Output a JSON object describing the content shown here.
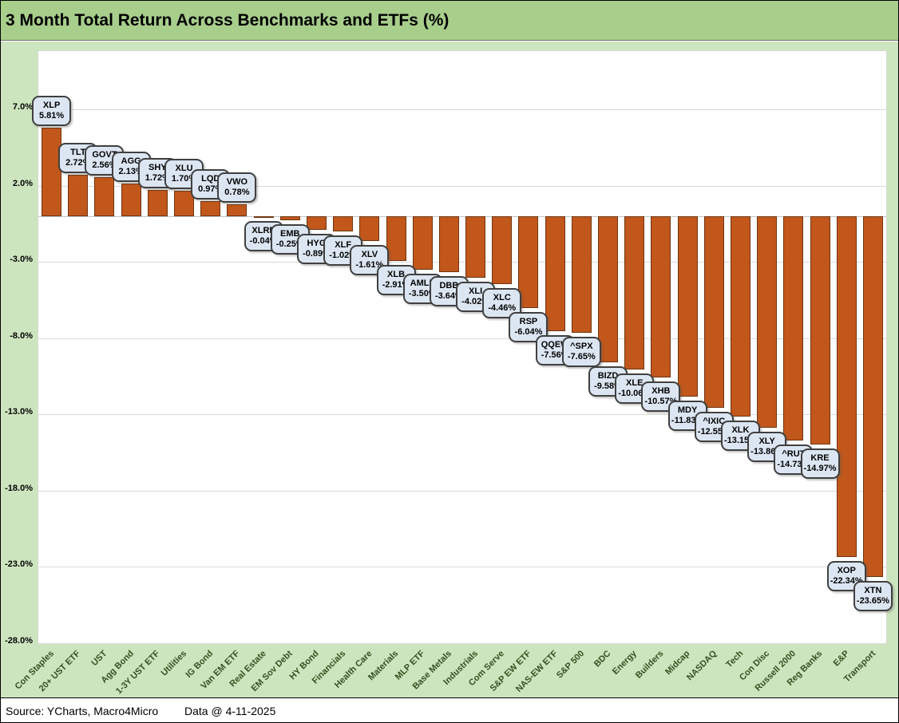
{
  "title": "3 Month Total Return Across Benchmarks and ETFs (%)",
  "footer": {
    "source": "Source: YCharts, Macro4Micro",
    "data_date": "Data @ 4-11-2025"
  },
  "colors": {
    "title_band": "#A8CE8C",
    "chart_background": "#CDE5BF",
    "plot_background": "#FFFFFF",
    "gridline": "#D9D9D9",
    "bar_fill": "#C2571B",
    "bar_border": "#6E3510",
    "label_box_fill": "#DCE6F2",
    "label_box_border": "#404040",
    "category_label_color": "#33511E"
  },
  "chart_data": {
    "type": "bar",
    "title": "3 Month Total Return Across Benchmarks and ETFs (%)",
    "xlabel": "",
    "ylabel": "",
    "grid": true,
    "legend": "none",
    "ylim": [
      -28.4,
      10.8
    ],
    "yticks": [
      7.0,
      2.0,
      -3.0,
      -8.0,
      -13.0,
      -18.0,
      -23.0,
      -28.0
    ],
    "ytick_labels": [
      "7.0%",
      "2.0%",
      "-3.0%",
      "-8.0%",
      "-13.0%",
      "-18.0%",
      "-23.0%",
      "-28.0%"
    ],
    "categories": [
      "Con Staples",
      "20+ UST ETF",
      "UST",
      "Agg Bond",
      "1-3Y UST ETF",
      "Utilities",
      "IG Bond",
      "Van EM ETF",
      "Real Estate",
      "EM Sov Debt",
      "HY Bond",
      "Financials",
      "Health Care",
      "Materials",
      "MLP ETF",
      "Base Metals",
      "Industrials",
      "Com Serve",
      "S&P EW ETF",
      "NAS-EW ETF",
      "S&P 500",
      "BDC",
      "Energy",
      "Builders",
      "Midcap",
      "NASDAQ",
      "Tech",
      "Con Disc",
      "Russell 2000",
      "Reg Banks",
      "E&P",
      "Transport"
    ],
    "points": [
      {
        "category": "Con Staples",
        "ticker": "XLP",
        "value": 5.81,
        "label": "5.81%"
      },
      {
        "category": "20+ UST ETF",
        "ticker": "TLT",
        "value": 2.72,
        "label": "2.72%"
      },
      {
        "category": "UST",
        "ticker": "GOVT",
        "value": 2.56,
        "label": "2.56%"
      },
      {
        "category": "Agg Bond",
        "ticker": "AGG",
        "value": 2.13,
        "label": "2.13%"
      },
      {
        "category": "1-3Y UST ETF",
        "ticker": "SHY",
        "value": 1.72,
        "label": "1.72%"
      },
      {
        "category": "Utilities",
        "ticker": "XLU",
        "value": 1.7,
        "label": "1.70%"
      },
      {
        "category": "IG Bond",
        "ticker": "LQD",
        "value": 0.97,
        "label": "0.97%"
      },
      {
        "category": "Van EM ETF",
        "ticker": "VWO",
        "value": 0.78,
        "label": "0.78%"
      },
      {
        "category": "Real Estate",
        "ticker": "XLRE",
        "value": -0.04,
        "label": "-0.04%"
      },
      {
        "category": "EM Sov Debt",
        "ticker": "EMB",
        "value": -0.25,
        "label": "-0.25%"
      },
      {
        "category": "HY Bond",
        "ticker": "HYG",
        "value": -0.89,
        "label": "-0.89%"
      },
      {
        "category": "Financials",
        "ticker": "XLF",
        "value": -1.02,
        "label": "-1.02%"
      },
      {
        "category": "Health Care",
        "ticker": "XLV",
        "value": -1.61,
        "label": "-1.61%"
      },
      {
        "category": "Materials",
        "ticker": "XLB",
        "value": -2.91,
        "label": "-2.91%"
      },
      {
        "category": "MLP ETF",
        "ticker": "AMLP",
        "value": -3.5,
        "label": "-3.50%"
      },
      {
        "category": "Base Metals",
        "ticker": "DBB",
        "value": -3.64,
        "label": "-3.64%"
      },
      {
        "category": "Industrials",
        "ticker": "XLI",
        "value": -4.02,
        "label": "-4.02%"
      },
      {
        "category": "Com Serve",
        "ticker": "XLC",
        "value": -4.46,
        "label": "-4.46%"
      },
      {
        "category": "S&P EW ETF",
        "ticker": "RSP",
        "value": -6.04,
        "label": "-6.04%"
      },
      {
        "category": "NAS-EW ETF",
        "ticker": "QQEW",
        "value": -7.56,
        "label": "-7.56%"
      },
      {
        "category": "S&P 500",
        "ticker": "^SPX",
        "value": -7.65,
        "label": "-7.65%"
      },
      {
        "category": "BDC",
        "ticker": "BIZD",
        "value": -9.58,
        "label": "-9.58%"
      },
      {
        "category": "Energy",
        "ticker": "XLE",
        "value": -10.06,
        "label": "-10.06%"
      },
      {
        "category": "Builders",
        "ticker": "XHB",
        "value": -10.57,
        "label": "-10.57%"
      },
      {
        "category": "Midcap",
        "ticker": "MDY",
        "value": -11.83,
        "label": "-11.83%"
      },
      {
        "category": "NASDAQ",
        "ticker": "^IXIC",
        "value": -12.55,
        "label": "-12.55%"
      },
      {
        "category": "Tech",
        "ticker": "XLK",
        "value": -13.15,
        "label": "-13.15%"
      },
      {
        "category": "Con Disc",
        "ticker": "XLY",
        "value": -13.86,
        "label": "-13.86%"
      },
      {
        "category": "Russell 2000",
        "ticker": "^RUT",
        "value": -14.73,
        "label": "-14.73%"
      },
      {
        "category": "Reg Banks",
        "ticker": "KRE",
        "value": -14.97,
        "label": "-14.97%"
      },
      {
        "category": "E&P",
        "ticker": "XOP",
        "value": -22.34,
        "label": "-22.34%"
      },
      {
        "category": "Transport",
        "ticker": "XTN",
        "value": -23.65,
        "label": "-23.65%"
      }
    ]
  }
}
